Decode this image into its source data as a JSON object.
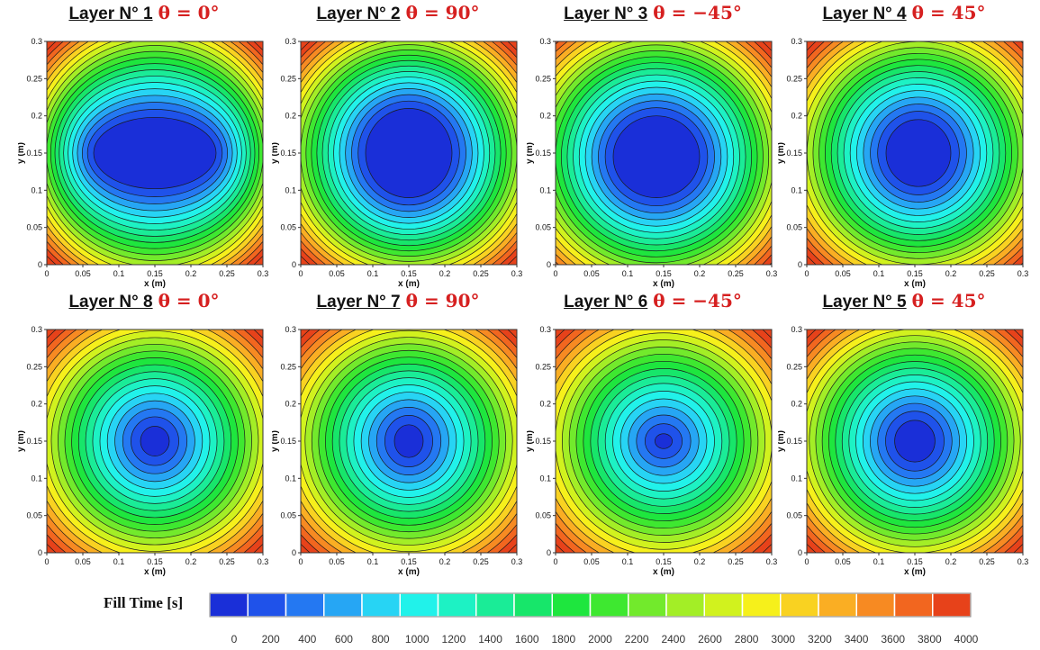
{
  "chart_data": {
    "type": "heatmap",
    "x": {
      "label": "x (m)",
      "range": [
        0,
        0.3
      ],
      "ticks": [
        "0",
        "0.05",
        "0.1",
        "0.15",
        "0.2",
        "0.25",
        "0.3"
      ]
    },
    "y": {
      "label": "y (m)",
      "range": [
        0,
        0.3
      ],
      "ticks": [
        "0",
        "0.05",
        "0.1",
        "0.15",
        "0.2",
        "0.25",
        "0.3"
      ]
    },
    "panels": [
      {
        "layer": "Layer N° 1",
        "theta": "θ = 0°",
        "center": [
          0.15,
          0.15
        ],
        "radii": [
          0.085,
          0.048
        ]
      },
      {
        "layer": "Layer N° 2",
        "theta": "θ = 90°",
        "center": [
          0.15,
          0.15
        ],
        "radii": [
          0.06,
          0.06
        ]
      },
      {
        "layer": "Layer N° 3",
        "theta": "θ = −45°",
        "center": [
          0.14,
          0.145
        ],
        "radii": [
          0.06,
          0.055
        ]
      },
      {
        "layer": "Layer N° 4",
        "theta": "θ = 45°",
        "center": [
          0.155,
          0.15
        ],
        "radii": [
          0.045,
          0.045
        ]
      },
      {
        "layer": "Layer N° 8",
        "theta": "θ = 0°",
        "center": [
          0.15,
          0.15
        ],
        "radii": [
          0.02,
          0.02
        ]
      },
      {
        "layer": "Layer N° 7",
        "theta": "θ = 90°",
        "center": [
          0.15,
          0.15
        ],
        "radii": [
          0.02,
          0.022
        ]
      },
      {
        "layer": "Layer N° 6",
        "theta": "θ = −45°",
        "center": [
          0.15,
          0.15
        ],
        "radii": [
          0.012,
          0.01
        ]
      },
      {
        "layer": "Layer N° 5",
        "theta": "θ = 45°",
        "center": [
          0.15,
          0.15
        ],
        "radii": [
          0.028,
          0.028
        ]
      }
    ],
    "colorbar": {
      "title": "Fill Time [s]",
      "levels": [
        0,
        200,
        400,
        600,
        800,
        1000,
        1200,
        1400,
        1600,
        1800,
        2000,
        2200,
        2400,
        2600,
        2800,
        3000,
        3200,
        3400,
        3600,
        3800,
        4000
      ],
      "colors": [
        "#1a2fd8",
        "#1f52ea",
        "#2478f2",
        "#26a6f4",
        "#27d4f4",
        "#21f2ea",
        "#1df2c4",
        "#1aec97",
        "#17e66a",
        "#1ee63e",
        "#3ee830",
        "#72ea2c",
        "#a3ee26",
        "#d1f21e",
        "#f6f01b",
        "#f9d221",
        "#faae23",
        "#f78a22",
        "#f2661f",
        "#e7421a"
      ]
    },
    "fill_time_max": 4000
  }
}
